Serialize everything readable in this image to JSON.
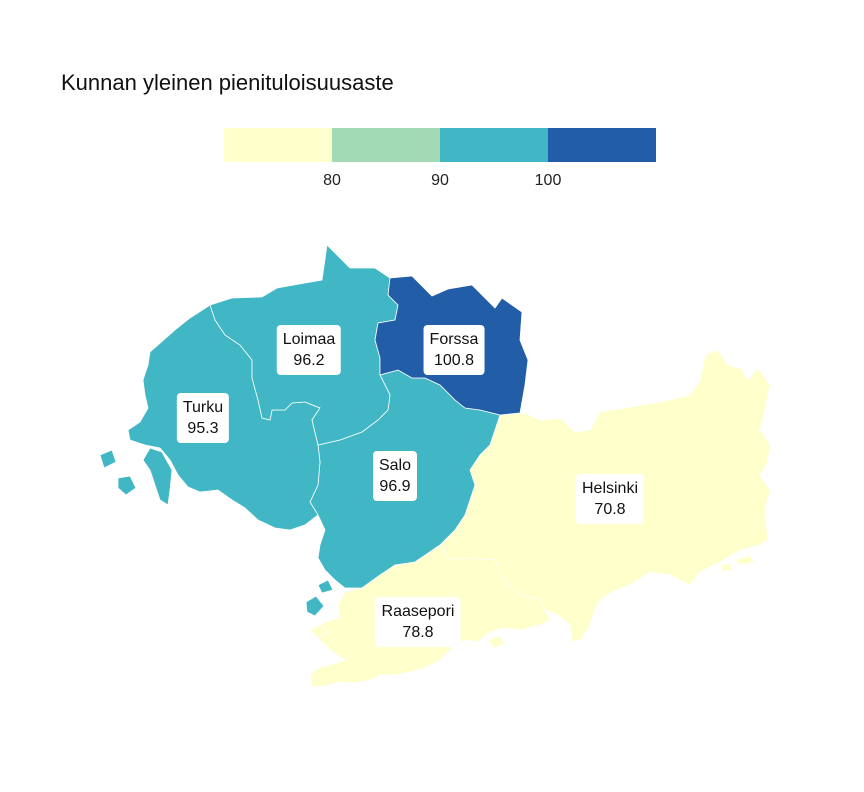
{
  "title": "Kunnan yleinen pienituloisuusaste",
  "legend": {
    "colors": [
      "#ffffcc",
      "#a1dab4",
      "#41b6c4",
      "#225ea8"
    ],
    "ticks": [
      "80",
      "90",
      "100"
    ]
  },
  "regions": [
    {
      "name": "Loimaa",
      "value": "96.2",
      "color": "#41b6c4"
    },
    {
      "name": "Forssa",
      "value": "100.8",
      "color": "#225ea8"
    },
    {
      "name": "Turku",
      "value": "95.3",
      "color": "#41b6c4"
    },
    {
      "name": "Salo",
      "value": "96.9",
      "color": "#41b6c4"
    },
    {
      "name": "Helsinki",
      "value": "70.8",
      "color": "#ffffcc"
    },
    {
      "name": "Raasepori",
      "value": "78.8",
      "color": "#ffffcc"
    }
  ]
}
